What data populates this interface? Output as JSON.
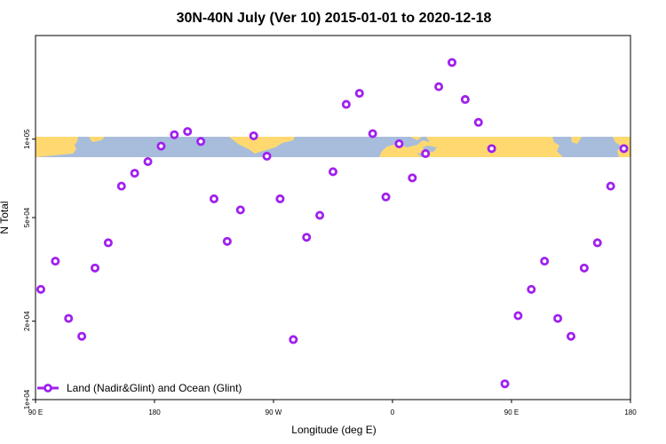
{
  "chart_data": {
    "type": "scatter",
    "title": "30N-40N July (Ver 10)   2015-01-01 to 2020-12-18",
    "xlabel": "Longitude (deg E)",
    "ylabel": "N Total",
    "y_scale": "log",
    "xlim": [
      90,
      540
    ],
    "ylim": [
      10000,
      250000
    ],
    "x_ticks": [
      {
        "value": 90,
        "label": "90 E"
      },
      {
        "value": 180,
        "label": "180"
      },
      {
        "value": 270,
        "label": "90 W"
      },
      {
        "value": 360,
        "label": "0"
      },
      {
        "value": 450,
        "label": "90 E"
      },
      {
        "value": 540,
        "label": "180"
      }
    ],
    "y_ticks": [
      {
        "value": 10000,
        "label": "1e+04"
      },
      {
        "value": 20000,
        "label": "2e+04"
      },
      {
        "value": 50000,
        "label": "5e+04"
      },
      {
        "value": 100000,
        "label": "1e+05"
      }
    ],
    "grid": false,
    "legend_position": "bottom-left",
    "map_band": {
      "lat_range": "30N-40N",
      "land_color": "#FFD970",
      "ocean_color": "#A8BCDC"
    },
    "series": [
      {
        "name": "Land (Nadir&Glint) and Ocean (Glint)",
        "color": "#A020F0",
        "x": [
          94,
          105,
          115,
          125,
          135,
          145,
          155,
          165,
          175,
          185,
          195,
          205,
          215,
          225,
          235,
          245,
          255,
          265,
          275,
          285,
          295,
          305,
          315,
          325,
          335,
          345,
          355,
          365,
          375,
          385,
          395,
          405,
          415,
          425,
          435,
          445,
          455,
          465,
          475,
          485,
          495,
          505,
          515,
          525,
          535
        ],
        "y": [
          26500,
          34000,
          20500,
          17500,
          32000,
          40000,
          66000,
          74000,
          82000,
          94000,
          104000,
          107000,
          98000,
          59000,
          40500,
          53500,
          103000,
          86000,
          59000,
          17000,
          42000,
          51000,
          75000,
          136000,
          150000,
          105000,
          60000,
          96000,
          71000,
          88000,
          159000,
          197000,
          142000,
          116000,
          92000,
          11500,
          21000,
          26500,
          34000,
          20500,
          17500,
          32000,
          40000,
          66000,
          92000
        ]
      }
    ]
  }
}
